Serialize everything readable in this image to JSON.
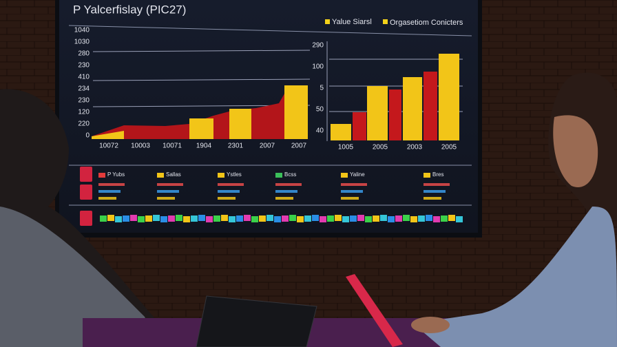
{
  "screen": {
    "title": "P Yalcerfislay (PIC27)",
    "legend": [
      "Yalue Siarsl",
      "Orgasetiom Conicters"
    ],
    "left_chart": {
      "y_labels": [
        "1040",
        "1030",
        "280",
        "230",
        "410",
        "234",
        "230",
        "120",
        "220",
        "0"
      ],
      "x_labels": [
        "10072",
        "10003",
        "10071",
        "1904",
        "2301",
        "2007",
        "2007"
      ]
    },
    "right_chart": {
      "y_labels": [
        "290",
        "100",
        "5",
        "50",
        "40"
      ],
      "x_labels": [
        "1005",
        "2005",
        "2003",
        "2005"
      ]
    },
    "table_labels": [
      "P Yubs",
      "Sallas",
      "Ystles",
      "Bcss",
      "Yaline",
      "Bres"
    ]
  }
}
